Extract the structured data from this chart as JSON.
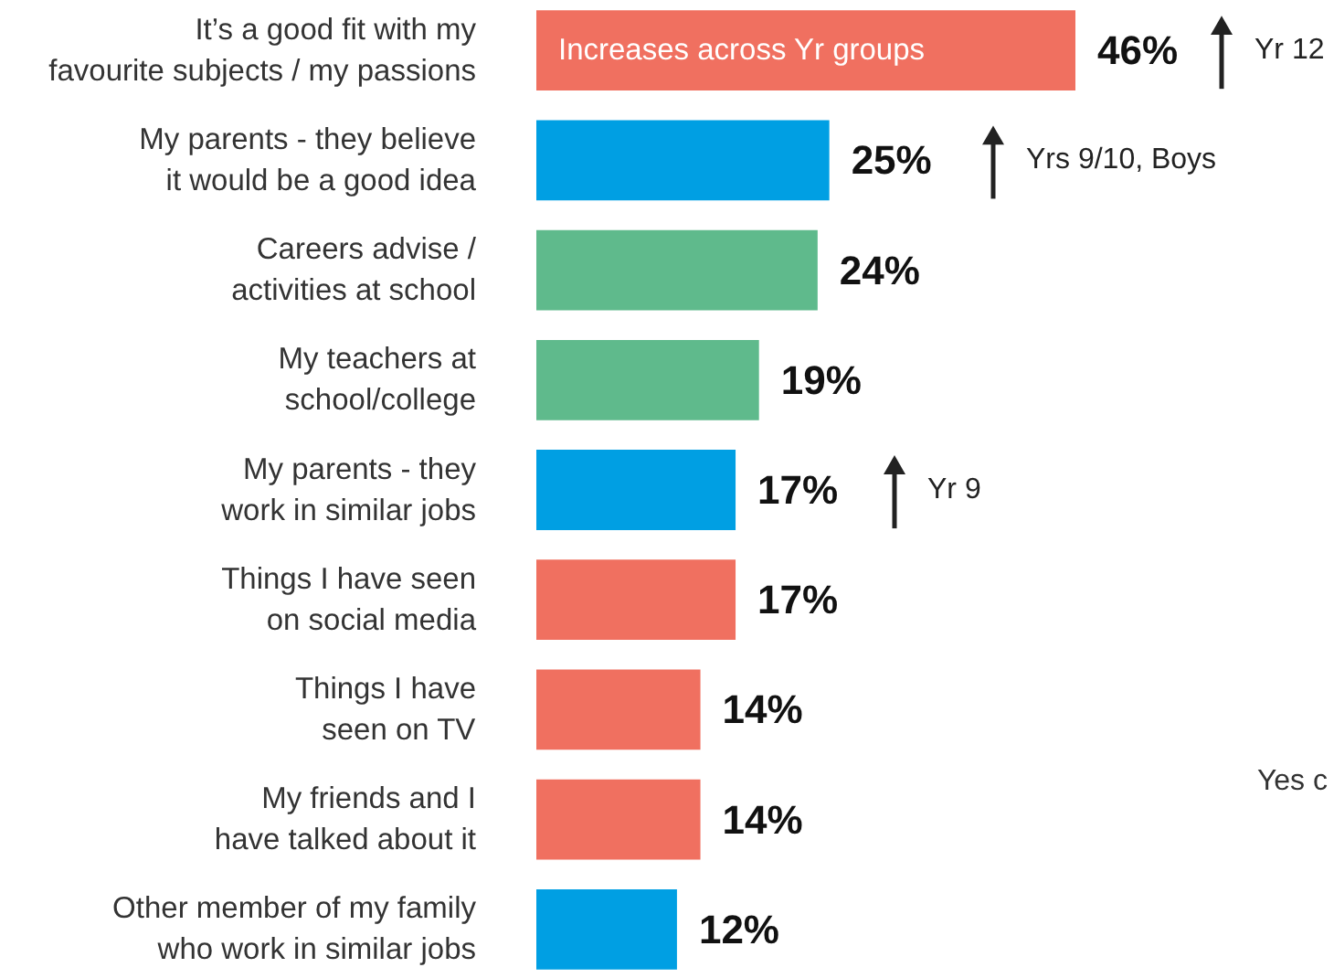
{
  "chart_data": {
    "type": "bar",
    "orientation": "horizontal",
    "value_labels": [
      "46%",
      "25%",
      "24%",
      "19%",
      "17%",
      "17%",
      "14%",
      "14%",
      "12%"
    ],
    "categories": [
      "It’s a good fit with my favourite subjects / my passions",
      "My parents - they believe it would be a good idea",
      "Careers advise / activities at school",
      "My teachers at school/college",
      "My parents - they work in similar jobs",
      "Things I have seen on social media",
      "Things I have seen on TV",
      "My friends and I have talked about it",
      "Other member of my family who work in similar jobs"
    ],
    "values": [
      46,
      25,
      24,
      19,
      17,
      17,
      14,
      14,
      12
    ],
    "colors": [
      "#f07060",
      "#009fe3",
      "#5fba8c",
      "#5fba8c",
      "#009fe3",
      "#f07060",
      "#f07060",
      "#f07060",
      "#009fe3"
    ],
    "annotations": [
      {
        "text": "Increases across Yr groups",
        "x": 0,
        "y": "It’s a good fit with my favourite subjects / my passions"
      },
      "Yr 12",
      "Yrs 9/10, Boys",
      "Yr 9",
      "Yes c"
    ]
  }
}
